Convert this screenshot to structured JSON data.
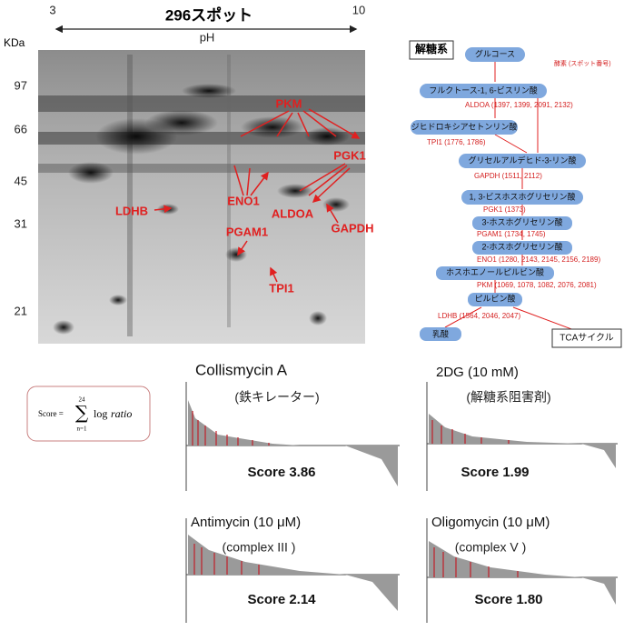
{
  "gel": {
    "title": "296スポット",
    "ph_label": "pH",
    "ph_min": "3",
    "ph_max": "10",
    "mw_unit": "KDa",
    "mw_ticks": [
      "97",
      "66",
      "45",
      "31",
      "21"
    ],
    "proteins": [
      "PKM",
      "PGK1",
      "ENO1",
      "ALDOA",
      "LDHB",
      "GAPDH",
      "PGAM1",
      "TPI1"
    ]
  },
  "pathway": {
    "title": "解糖系",
    "legend": "酵素 (スポット番号)",
    "nodes": [
      "グルコース",
      "フルクトース-1, 6-ビスリン酸",
      "ジヒドロキシアセトンリン酸",
      "グリセルアルデヒド-3-リン酸",
      "1, 3-ビスホスホグリセリン酸",
      "3-ホスホグリセリン酸",
      "2-ホスホグリセリン酸",
      "ホスホエノールピルビン酸",
      "ピルビン酸",
      "乳酸",
      "TCAサイクル"
    ],
    "enzymes": [
      "ALDOA (1397, 1399, 2091, 2132)",
      "TPI1 (1776, 1786)",
      "GAPDH (1511, 2112)",
      "PGK1 (1373)",
      "PGAM1 (1734, 1745)",
      "ENO1 (1280, 2143, 2145, 2156, 2189)",
      "PKM (1069, 1078, 1082, 2076, 2081)",
      "LDHB (1564, 2046, 2047)"
    ]
  },
  "formula": {
    "lhs": "Score =",
    "upper": "24",
    "symbol": "∑",
    "lower": "n=1",
    "log": "log",
    "term": "ratio"
  },
  "panels": [
    {
      "title": "Collismycin A",
      "subtitle": "(鉄キレーター)",
      "score": "Score 3.86"
    },
    {
      "title": "2DG (10 mM)",
      "subtitle": "(解糖系阻害剤)",
      "score": "Score 1.99"
    },
    {
      "title": "Antimycin (10 μM)",
      "subtitle": "(complex III )",
      "score": "Score 2.14"
    },
    {
      "title": "Oligomycin (10 μM)",
      "subtitle": "(complex V )",
      "score": "Score 1.80"
    }
  ]
}
